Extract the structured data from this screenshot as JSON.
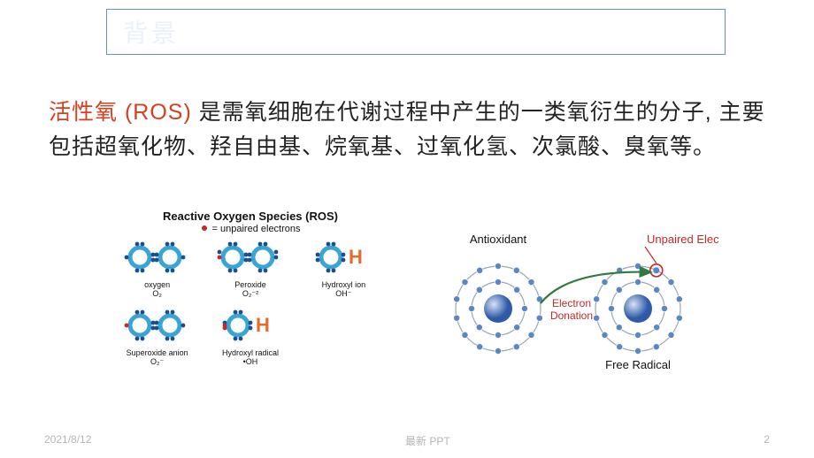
{
  "header": {
    "title": "背景"
  },
  "body": {
    "highlight": "活性氧 (ROS) ",
    "rest": "是需氧细胞在代谢过程中产生的一类氧衍生的分子, 主要包括超氧化物、羟自由基、烷氧基、过氧化氢、次氯酸、臭氧等。"
  },
  "footer": {
    "date": "2021/8/12",
    "center": "最新 PPT",
    "page": "2"
  },
  "colors": {
    "o_blue": "#3aa4d6",
    "h_orange": "#e76a2a",
    "dot_red": "#c62828",
    "dot_blue": "#1b4f8a",
    "red_text": "#d64020",
    "axis_gray": "#666666",
    "ball_blue": "#2e5aa8",
    "ring_gray": "#9aa7b2",
    "elec_blue": "#5b86c5",
    "arrow_green": "#2f7a3f"
  },
  "fig1": {
    "title": "Reactive Oxygen Species (ROS)",
    "title_fontsize": 13,
    "legend_dot_color": "#c62828",
    "legend_text": "= unpaired electrons",
    "legend_fontsize": 11,
    "molecules": [
      {
        "name": "oxygen",
        "formula": "O₂",
        "pattern": "OO",
        "red_dots": []
      },
      {
        "name": "Peroxide",
        "formula": "O₂⁻²",
        "pattern": "OO",
        "red_dots": [
          "left"
        ],
        "extra_dots": true
      },
      {
        "name": "Hydroxyl ion",
        "formula": "OH⁻",
        "pattern": "OH",
        "red_dots": []
      },
      {
        "name": "Superoxide anion",
        "formula": "O₂⁻",
        "pattern": "OO",
        "red_dots": [
          "left"
        ]
      },
      {
        "name": "Hydroxyl radical",
        "formula": "•OH",
        "pattern": "OH",
        "red_dots": [
          "left"
        ]
      },
      {
        "name": "",
        "formula": "",
        "pattern": "",
        "red_dots": []
      }
    ]
  },
  "fig2": {
    "label_antiox": "Antioxidant",
    "label_unpaired": "Unpaired Electron",
    "label_donation": "Electron\nDonation",
    "label_free": "Free Radical",
    "fontsize": 13
  }
}
